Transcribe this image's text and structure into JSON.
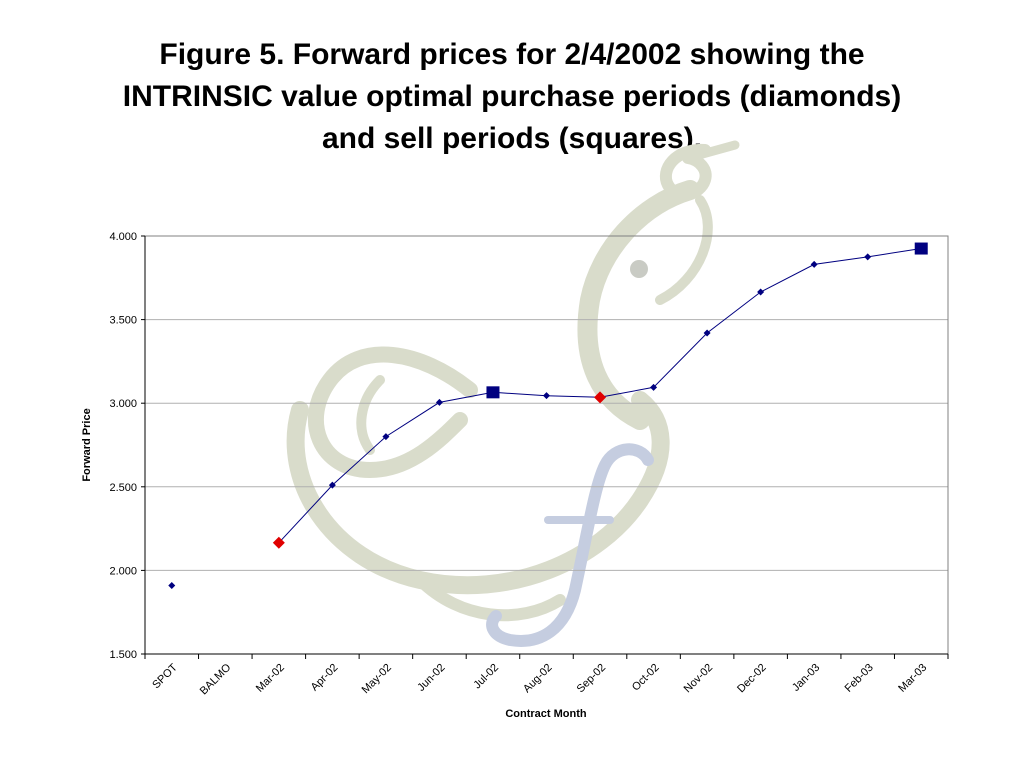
{
  "slide": {
    "title_lines": [
      "Figure 5.  Forward prices for 2/4/2002 showing the",
      "INTRINSIC value optimal purchase periods (diamonds)",
      "and sell periods (squares)."
    ]
  },
  "colors": {
    "series": "#000080",
    "buy_marker": "#e00000",
    "sell_marker": "#000080",
    "gridline": "#b0b0b0",
    "watermark_green": "#d9dccb",
    "watermark_blue": "#c5cde0"
  },
  "watermark_icon": "dove-sigma-f-logo",
  "chart_data": {
    "type": "line",
    "xlabel": "Contract Month",
    "ylabel": "Forward Price",
    "ylim": [
      1.5,
      4.0
    ],
    "yticks": [
      "1.500",
      "2.000",
      "2.500",
      "3.000",
      "3.500",
      "4.000"
    ],
    "ytick_values": [
      1.5,
      2.0,
      2.5,
      3.0,
      3.5,
      4.0
    ],
    "grid": "horizontal",
    "legend": "none",
    "categories": [
      "SPOT",
      "BALMO",
      "Mar-02",
      "Apr-02",
      "May-02",
      "Jun-02",
      "Jul-02",
      "Aug-02",
      "Sep-02",
      "Oct-02",
      "Nov-02",
      "Dec-02",
      "Jan-03",
      "Feb-03",
      "Mar-03"
    ],
    "series": [
      {
        "values": [
          1.91,
          null,
          2.165,
          2.51,
          2.8,
          3.005,
          3.065,
          3.045,
          3.035,
          3.095,
          3.42,
          3.665,
          3.83,
          3.875,
          3.925
        ]
      }
    ],
    "purchase_periods": [
      "Mar-02",
      "Sep-02"
    ],
    "sell_periods": [
      "Jul-02",
      "Mar-03"
    ]
  }
}
